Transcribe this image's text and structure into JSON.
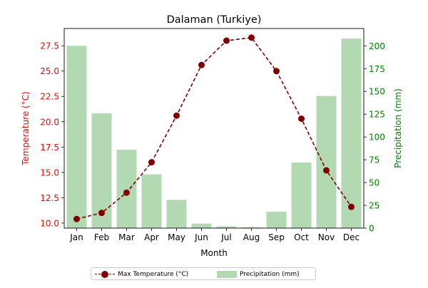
{
  "chart_data": {
    "type": "bar+line",
    "title": "Dalaman (Turkiye)",
    "xlabel": "Month",
    "ylabel_left": "Temperature (°C)",
    "ylabel_right": "Precipitation (mm)",
    "categories": [
      "Jan",
      "Feb",
      "Mar",
      "Apr",
      "May",
      "Jun",
      "Jul",
      "Aug",
      "Sep",
      "Oct",
      "Nov",
      "Dec"
    ],
    "left_axis": {
      "ylim": [
        9.5,
        29.2
      ],
      "ticks": [
        10.0,
        12.5,
        15.0,
        17.5,
        20.0,
        22.5,
        25.0,
        27.5
      ],
      "tick_labels": [
        "10.0",
        "12.5",
        "15.0",
        "17.5",
        "20.0",
        "22.5",
        "25.0",
        "27.5"
      ]
    },
    "right_axis": {
      "ylim": [
        0,
        219
      ],
      "ticks": [
        0,
        25,
        50,
        75,
        100,
        125,
        150,
        175,
        200
      ],
      "tick_labels": [
        "0",
        "25",
        "50",
        "75",
        "100",
        "125",
        "150",
        "175",
        "200"
      ]
    },
    "series": [
      {
        "name": "Max Temperature (°C)",
        "kind": "line",
        "axis": "left",
        "style": "dashed",
        "marker": "circle",
        "color": "#800000",
        "values": [
          10.4,
          11.0,
          13.0,
          16.0,
          20.6,
          25.6,
          28.0,
          28.3,
          25.0,
          20.3,
          15.2,
          11.6
        ]
      },
      {
        "name": "Precipitation (mm)",
        "kind": "bar",
        "axis": "right",
        "color": "#008000",
        "opacity": 0.3,
        "values": [
          200,
          126,
          86,
          59,
          31,
          5,
          2,
          1,
          18,
          72,
          145,
          208
        ]
      }
    ],
    "legend_placement": "bottom-center",
    "grid": false,
    "colors": {
      "left_axis": "#ff0000",
      "right_axis": "#008000",
      "line": "#800000",
      "bars": "#008000"
    }
  }
}
